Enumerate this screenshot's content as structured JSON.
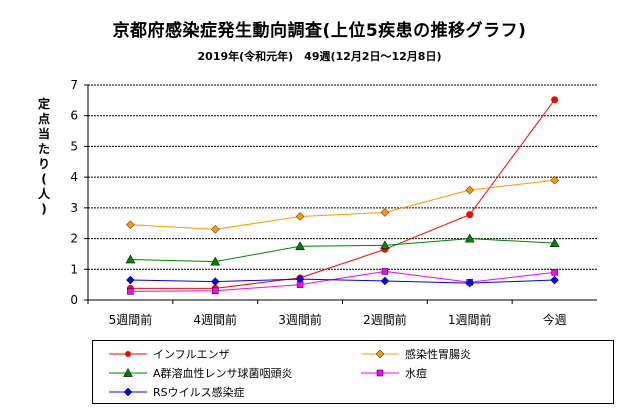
{
  "chart_data": {
    "type": "line",
    "title": "京都府感染症発生動向調査(上位5疾患の推移グラフ)",
    "subtitle": "2019年(令和元年)　49週(12月2日～12月8日)",
    "ylabel": "定点当たり(人)",
    "xlabel": "",
    "categories": [
      "5週間前",
      "4週間前",
      "3週間前",
      "2週間前",
      "1週間前",
      "今週"
    ],
    "ylim": [
      0,
      7
    ],
    "yticks": [
      "0",
      "1",
      "2",
      "3",
      "4",
      "5",
      "6",
      "7"
    ],
    "grid": true,
    "legend_position": "bottom",
    "series": [
      {
        "name": "インフルエンザ",
        "color": "#ff0000",
        "marker": "circle",
        "values": [
          0.38,
          0.38,
          0.72,
          1.65,
          2.78,
          6.52
        ]
      },
      {
        "name": "感染性胃腸炎",
        "color": "#ff9900",
        "marker": "diamond",
        "values": [
          2.45,
          2.3,
          2.72,
          2.85,
          3.58,
          3.9
        ]
      },
      {
        "name": "A群溶血性レンサ球菌咽頭炎",
        "color": "#008000",
        "marker": "triangle",
        "values": [
          1.32,
          1.25,
          1.75,
          1.78,
          2.0,
          1.85
        ]
      },
      {
        "name": "水痘",
        "color": "#ff00ff",
        "marker": "square",
        "values": [
          0.28,
          0.3,
          0.5,
          0.93,
          0.58,
          0.9
        ]
      },
      {
        "name": "RSウイルス感染症",
        "color": "#0000ff",
        "marker": "diamond",
        "values": [
          0.65,
          0.6,
          0.68,
          0.62,
          0.55,
          0.65
        ]
      }
    ]
  }
}
